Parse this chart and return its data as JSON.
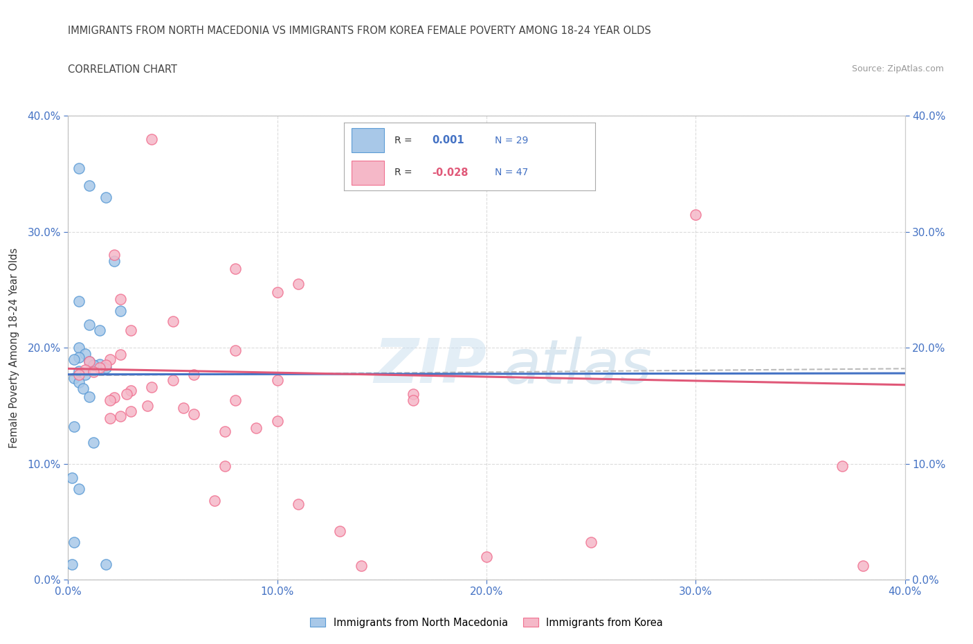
{
  "title": "IMMIGRANTS FROM NORTH MACEDONIA VS IMMIGRANTS FROM KOREA FEMALE POVERTY AMONG 18-24 YEAR OLDS",
  "subtitle": "CORRELATION CHART",
  "source": "Source: ZipAtlas.com",
  "ylabel": "Female Poverty Among 18-24 Year Olds",
  "xlim": [
    0.0,
    0.4
  ],
  "ylim": [
    0.0,
    0.4
  ],
  "xticks": [
    0.0,
    0.1,
    0.2,
    0.3,
    0.4
  ],
  "yticks": [
    0.0,
    0.1,
    0.2,
    0.3,
    0.4
  ],
  "r_blue": "0.001",
  "n_blue": "29",
  "r_pink": "-0.028",
  "n_pink": "47",
  "blue_fill": "#a8c8e8",
  "pink_fill": "#f5b8c8",
  "blue_edge": "#5b9bd5",
  "pink_edge": "#f07090",
  "blue_line_color": "#4472c4",
  "pink_line_color": "#e05878",
  "grid_color": "#cccccc",
  "blue_scatter": [
    [
      0.005,
      0.355
    ],
    [
      0.01,
      0.34
    ],
    [
      0.018,
      0.33
    ],
    [
      0.022,
      0.275
    ],
    [
      0.005,
      0.24
    ],
    [
      0.025,
      0.232
    ],
    [
      0.01,
      0.22
    ],
    [
      0.015,
      0.215
    ],
    [
      0.005,
      0.2
    ],
    [
      0.008,
      0.195
    ],
    [
      0.005,
      0.192
    ],
    [
      0.003,
      0.19
    ],
    [
      0.01,
      0.188
    ],
    [
      0.015,
      0.186
    ],
    [
      0.012,
      0.185
    ],
    [
      0.018,
      0.183
    ],
    [
      0.005,
      0.18
    ],
    [
      0.008,
      0.177
    ],
    [
      0.003,
      0.174
    ],
    [
      0.005,
      0.17
    ],
    [
      0.007,
      0.165
    ],
    [
      0.01,
      0.158
    ],
    [
      0.003,
      0.132
    ],
    [
      0.012,
      0.118
    ],
    [
      0.002,
      0.088
    ],
    [
      0.005,
      0.078
    ],
    [
      0.003,
      0.032
    ],
    [
      0.002,
      0.013
    ],
    [
      0.018,
      0.013
    ]
  ],
  "pink_scatter": [
    [
      0.04,
      0.38
    ],
    [
      0.022,
      0.28
    ],
    [
      0.3,
      0.315
    ],
    [
      0.08,
      0.268
    ],
    [
      0.11,
      0.255
    ],
    [
      0.1,
      0.248
    ],
    [
      0.025,
      0.242
    ],
    [
      0.05,
      0.223
    ],
    [
      0.03,
      0.215
    ],
    [
      0.08,
      0.198
    ],
    [
      0.025,
      0.194
    ],
    [
      0.02,
      0.19
    ],
    [
      0.01,
      0.188
    ],
    [
      0.018,
      0.185
    ],
    [
      0.015,
      0.183
    ],
    [
      0.008,
      0.181
    ],
    [
      0.012,
      0.179
    ],
    [
      0.005,
      0.177
    ],
    [
      0.06,
      0.177
    ],
    [
      0.05,
      0.172
    ],
    [
      0.1,
      0.172
    ],
    [
      0.04,
      0.166
    ],
    [
      0.03,
      0.163
    ],
    [
      0.028,
      0.16
    ],
    [
      0.022,
      0.157
    ],
    [
      0.02,
      0.155
    ],
    [
      0.08,
      0.155
    ],
    [
      0.038,
      0.15
    ],
    [
      0.055,
      0.148
    ],
    [
      0.03,
      0.145
    ],
    [
      0.06,
      0.143
    ],
    [
      0.025,
      0.141
    ],
    [
      0.02,
      0.139
    ],
    [
      0.1,
      0.137
    ],
    [
      0.09,
      0.131
    ],
    [
      0.075,
      0.128
    ],
    [
      0.165,
      0.16
    ],
    [
      0.165,
      0.155
    ],
    [
      0.075,
      0.098
    ],
    [
      0.37,
      0.098
    ],
    [
      0.07,
      0.068
    ],
    [
      0.11,
      0.065
    ],
    [
      0.13,
      0.042
    ],
    [
      0.25,
      0.032
    ],
    [
      0.2,
      0.02
    ],
    [
      0.14,
      0.012
    ],
    [
      0.38,
      0.012
    ]
  ],
  "blue_trend": [
    0.177,
    0.178
  ],
  "pink_trend_start": 0.182,
  "pink_trend_end": 0.168,
  "grey_trend": [
    0.176,
    0.182
  ]
}
